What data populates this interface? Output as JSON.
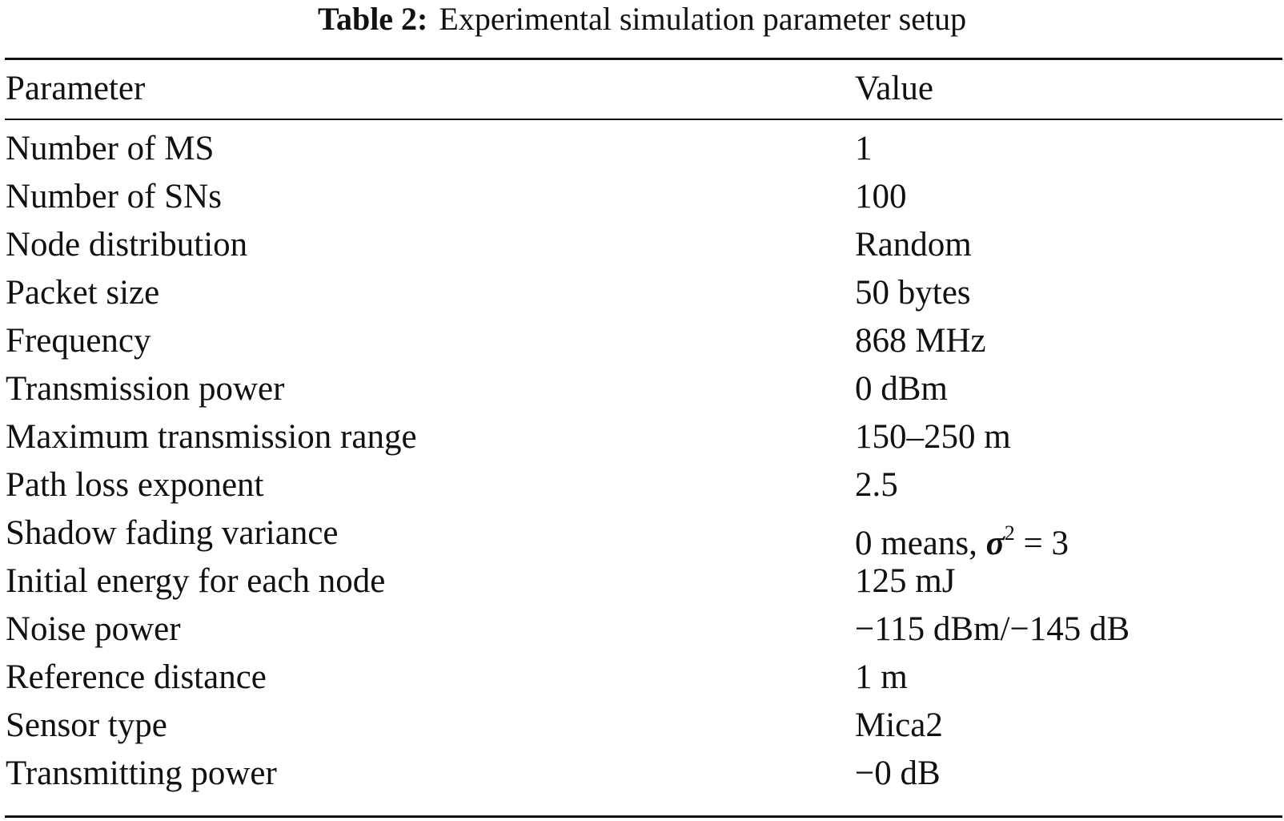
{
  "table": {
    "caption_label": "Table 2:",
    "caption_text": "Experimental simulation parameter setup",
    "headers": {
      "parameter": "Parameter",
      "value": "Value"
    },
    "rows": [
      {
        "parameter": "Number of MS",
        "value": "1"
      },
      {
        "parameter": "Number of SNs",
        "value": "100"
      },
      {
        "parameter": "Node distribution",
        "value": "Random"
      },
      {
        "parameter": "Packet size",
        "value": "50 bytes"
      },
      {
        "parameter": "Frequency",
        "value": "868 MHz"
      },
      {
        "parameter": "Transmission power",
        "value": "0 dBm"
      },
      {
        "parameter": "Maximum transmission range",
        "value": "150–250 m"
      },
      {
        "parameter": "Path loss exponent",
        "value": "2.5"
      },
      {
        "parameter": "Shadow fading variance",
        "value_prefix": "0 means, ",
        "value_symbol": "σ",
        "value_exponent": "2",
        "value_suffix": " = 3"
      },
      {
        "parameter": "Initial energy for each node",
        "value": "125 mJ"
      },
      {
        "parameter": "Noise power",
        "value": "−115 dBm/−145 dB"
      },
      {
        "parameter": "Reference distance",
        "value": "1 m"
      },
      {
        "parameter": "Sensor type",
        "value": "Mica2"
      },
      {
        "parameter": "Transmitting power",
        "value": "−0 dB"
      }
    ]
  }
}
